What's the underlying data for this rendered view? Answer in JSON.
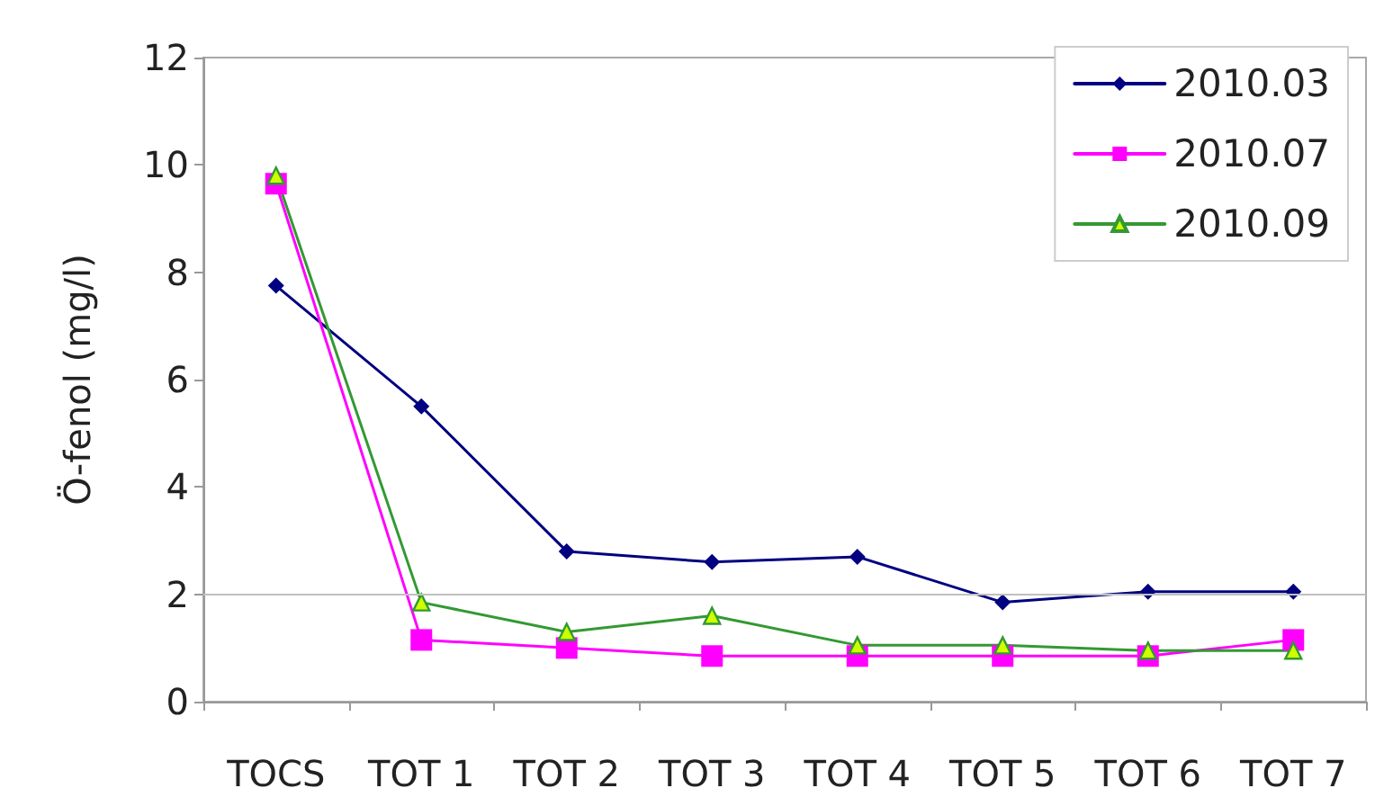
{
  "chart_data": {
    "type": "line",
    "ylabel": "Ö-fenol (mg/l)",
    "categories": [
      "TOCS",
      "TOT 1",
      "TOT 2",
      "TOT 3",
      "TOT 4",
      "TOT 5",
      "TOT 6",
      "TOT 7"
    ],
    "series": [
      {
        "name": "2010.03",
        "color": "#000080",
        "marker": "diamond",
        "values": [
          7.75,
          5.5,
          2.8,
          2.6,
          2.7,
          1.85,
          2.05,
          2.05
        ]
      },
      {
        "name": "2010.07",
        "color": "#ff00ff",
        "marker": "square",
        "values": [
          9.65,
          1.15,
          1.0,
          0.85,
          0.85,
          0.85,
          0.85,
          1.15
        ]
      },
      {
        "name": "2010.09",
        "color": "#339933",
        "marker": "triangle",
        "values": [
          9.8,
          1.85,
          1.3,
          1.6,
          1.05,
          1.05,
          0.95,
          0.95
        ]
      }
    ],
    "ylim": [
      0,
      12
    ],
    "yticks": [
      0,
      2,
      4,
      6,
      8,
      10,
      12
    ],
    "ref_lines": [
      {
        "axis": "y",
        "value": 2,
        "color": "#c0c0c0"
      }
    ],
    "grid": false,
    "legend": "top right",
    "line_style": "solid"
  }
}
